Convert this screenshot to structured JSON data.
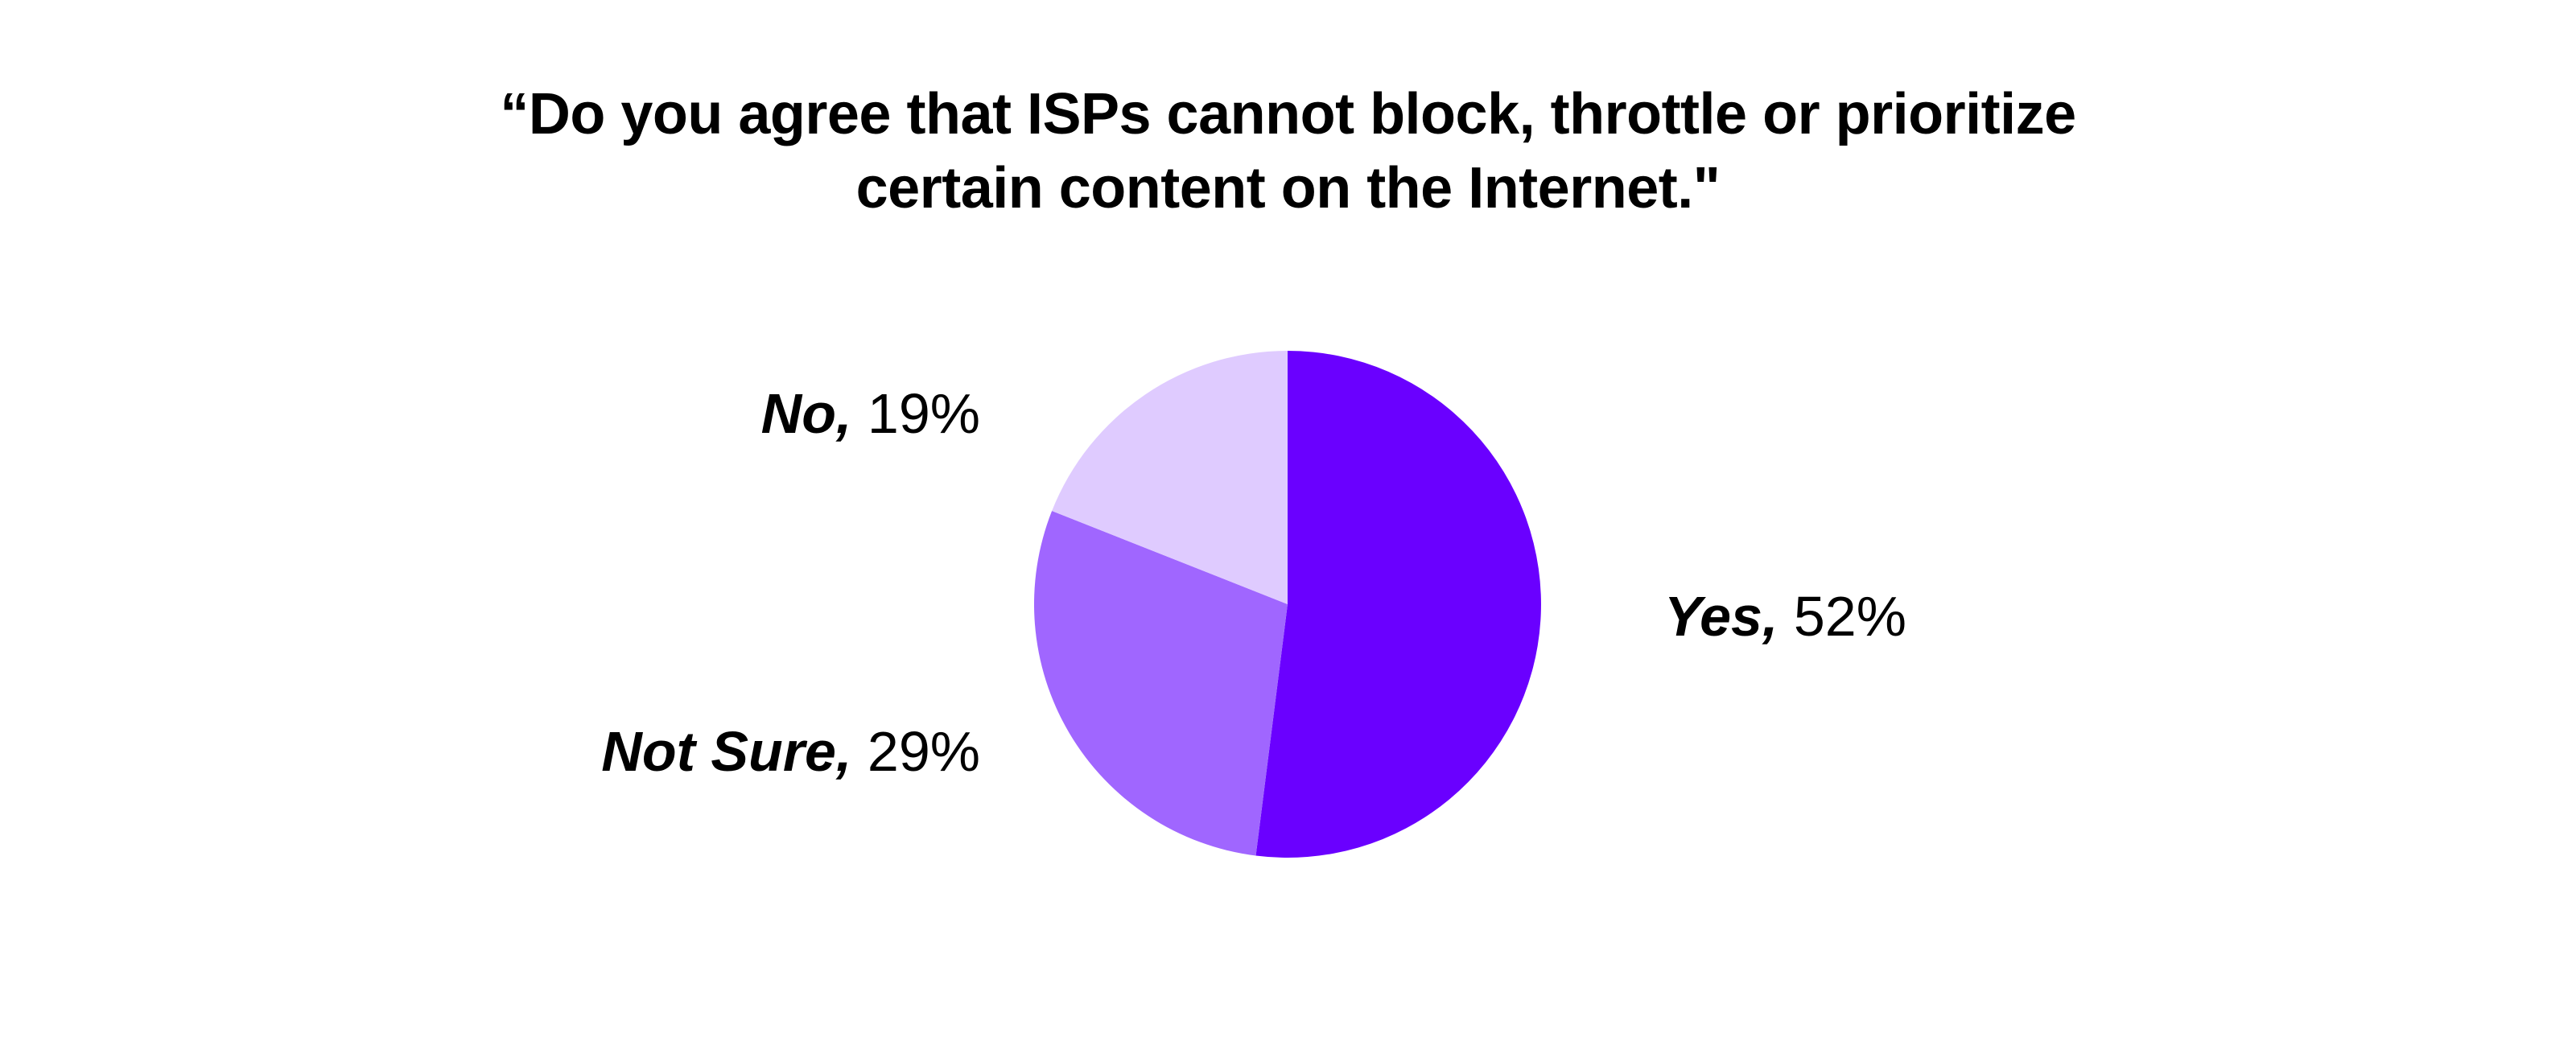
{
  "chart_data": {
    "type": "pie",
    "title": "“Do you agree that ISPs cannot block, throttle or prioritize certain content on the Internet.\"",
    "title_lines": [
      "“Do you agree that ISPs cannot block, throttle or prioritize",
      "certain content on the Internet.\""
    ],
    "slices": [
      {
        "label": "Yes",
        "value": 52,
        "value_text": "52%",
        "color": "#6a00ff",
        "label_side": "right"
      },
      {
        "label": "Not Sure",
        "value": 29,
        "value_text": "29%",
        "color": "#a066ff",
        "label_side": "left"
      },
      {
        "label": "No",
        "value": 19,
        "value_text": "19%",
        "color": "#dfcbff",
        "label_side": "left"
      }
    ],
    "start": "top",
    "direction": "clockwise",
    "legend": "none"
  }
}
